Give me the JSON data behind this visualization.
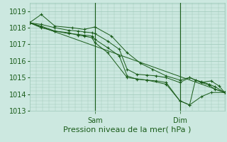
{
  "bg_color": "#cce8e0",
  "grid_color": "#9dc8b8",
  "line_color": "#1a5c1a",
  "marker_color": "#1a5c1a",
  "xlabel": "Pression niveau de la mer( hPa )",
  "xlabel_fontsize": 8,
  "ylim": [
    1013.0,
    1019.5
  ],
  "yticks": [
    1013,
    1014,
    1015,
    1016,
    1017,
    1018,
    1019
  ],
  "xtick_labels": [
    "Sam",
    "Dim"
  ],
  "xtick_positions": [
    0.335,
    0.77
  ],
  "vline_positions": [
    0.335,
    0.77
  ],
  "series": [
    {
      "x": [
        0.0,
        1.0
      ],
      "y": [
        1018.3,
        1014.1
      ]
    },
    {
      "x": [
        0.0,
        0.06,
        0.13,
        0.22,
        0.28,
        0.335,
        0.42,
        0.5,
        0.57,
        0.63,
        0.7,
        0.77,
        0.82,
        0.88,
        0.93,
        0.97,
        1.0
      ],
      "y": [
        1018.3,
        1018.8,
        1018.1,
        1018.0,
        1017.9,
        1018.05,
        1017.5,
        1016.5,
        1015.85,
        1015.5,
        1015.1,
        1014.85,
        1015.0,
        1014.7,
        1014.8,
        1014.5,
        1014.1
      ]
    },
    {
      "x": [
        0.0,
        0.06,
        0.13,
        0.2,
        0.25,
        0.28,
        0.32,
        0.335,
        0.4,
        0.46,
        0.5,
        0.55,
        0.6,
        0.65,
        0.7,
        0.77,
        0.82,
        0.85,
        0.88,
        0.92,
        0.95,
        1.0
      ],
      "y": [
        1018.3,
        1018.2,
        1018.0,
        1017.85,
        1017.8,
        1017.75,
        1017.7,
        1017.65,
        1017.2,
        1016.7,
        1015.5,
        1015.2,
        1015.15,
        1015.1,
        1015.0,
        1014.7,
        1015.0,
        1014.85,
        1014.7,
        1014.55,
        1014.3,
        1014.1
      ]
    },
    {
      "x": [
        0.0,
        0.06,
        0.13,
        0.2,
        0.25,
        0.28,
        0.32,
        0.335,
        0.4,
        0.46,
        0.5,
        0.55,
        0.6,
        0.65,
        0.7,
        0.77,
        0.82,
        0.85,
        0.88,
        0.92,
        0.95,
        1.0
      ],
      "y": [
        1018.3,
        1018.0,
        1017.8,
        1017.65,
        1017.6,
        1017.55,
        1017.5,
        1017.3,
        1016.8,
        1016.3,
        1015.1,
        1014.9,
        1014.85,
        1014.8,
        1014.7,
        1013.6,
        1013.35,
        1014.85,
        1014.75,
        1014.6,
        1014.45,
        1014.1
      ]
    },
    {
      "x": [
        0.0,
        0.06,
        0.13,
        0.2,
        0.25,
        0.28,
        0.32,
        0.335,
        0.4,
        0.5,
        0.6,
        0.7,
        0.77,
        0.82,
        0.88,
        0.93,
        1.0
      ],
      "y": [
        1018.3,
        1018.1,
        1017.8,
        1017.7,
        1017.55,
        1017.5,
        1017.4,
        1017.1,
        1016.5,
        1015.0,
        1014.85,
        1014.6,
        1013.6,
        1013.35,
        1013.85,
        1014.1,
        1014.1
      ]
    }
  ]
}
